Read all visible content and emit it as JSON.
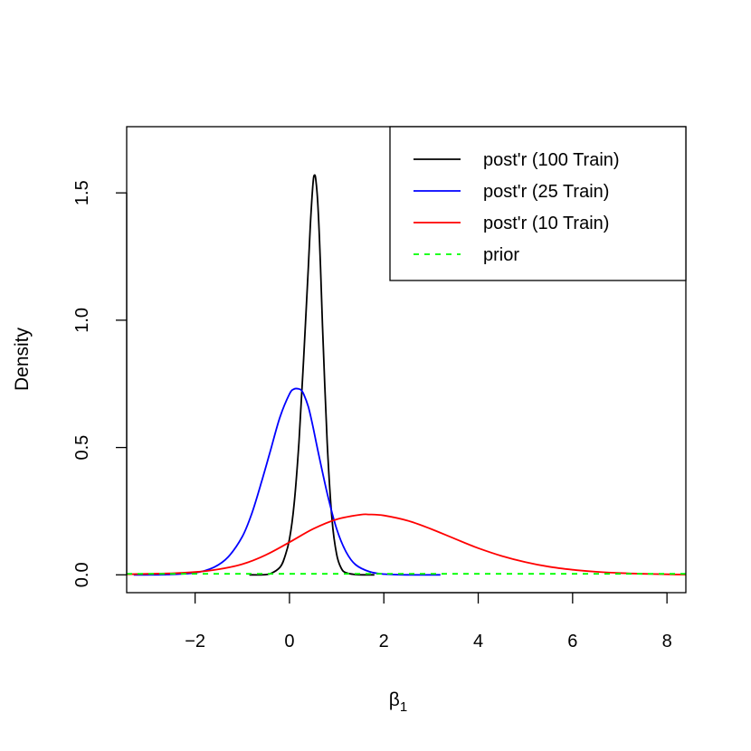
{
  "chart_data": {
    "type": "line",
    "title": "",
    "xlabel": "β",
    "xlabel_subscript": "1",
    "ylabel": "Density",
    "xlim": [
      -3.45,
      8.4
    ],
    "ylim": [
      -0.07,
      1.76
    ],
    "x_ticks": [
      -2,
      0,
      2,
      4,
      6,
      8
    ],
    "x_tick_labels": [
      "−2",
      "0",
      "2",
      "4",
      "6",
      "8"
    ],
    "y_ticks": [
      0.0,
      0.5,
      1.0,
      1.5
    ],
    "y_tick_labels": [
      "0.0",
      "0.5",
      "1.0",
      "1.5"
    ],
    "grid": false,
    "legend_position": "top-right",
    "series": [
      {
        "name": "post'r (100 Train)",
        "color": "#000000",
        "dash": "solid",
        "x": [
          -0.85,
          -0.6,
          -0.4,
          -0.2,
          -0.1,
          0.0,
          0.1,
          0.2,
          0.3,
          0.4,
          0.45,
          0.5,
          0.53,
          0.56,
          0.6,
          0.65,
          0.7,
          0.8,
          0.9,
          1.0,
          1.1,
          1.2,
          1.4,
          1.6,
          1.8
        ],
        "y": [
          0.0,
          0.0,
          0.005,
          0.03,
          0.07,
          0.14,
          0.28,
          0.52,
          0.85,
          1.21,
          1.4,
          1.54,
          1.57,
          1.55,
          1.46,
          1.25,
          0.98,
          0.52,
          0.22,
          0.08,
          0.025,
          0.008,
          0.001,
          0.0,
          0.0
        ]
      },
      {
        "name": "post'r (25 Train)",
        "color": "#0000ff",
        "dash": "solid",
        "x": [
          -3.3,
          -2.6,
          -2.0,
          -1.6,
          -1.3,
          -1.0,
          -0.8,
          -0.6,
          -0.4,
          -0.2,
          0.0,
          0.1,
          0.2,
          0.25,
          0.3,
          0.4,
          0.5,
          0.6,
          0.8,
          1.0,
          1.2,
          1.4,
          1.7,
          2.0,
          2.5,
          3.2
        ],
        "y": [
          0.0,
          0.001,
          0.008,
          0.03,
          0.07,
          0.15,
          0.24,
          0.36,
          0.49,
          0.62,
          0.71,
          0.73,
          0.73,
          0.725,
          0.71,
          0.66,
          0.58,
          0.49,
          0.32,
          0.18,
          0.09,
          0.04,
          0.012,
          0.003,
          0.0,
          0.0
        ]
      },
      {
        "name": "post'r (10 Train)",
        "color": "#ff0000",
        "dash": "solid",
        "x": [
          -3.45,
          -2.5,
          -2.0,
          -1.5,
          -1.0,
          -0.5,
          0.0,
          0.5,
          1.0,
          1.5,
          1.7,
          2.0,
          2.5,
          3.0,
          3.5,
          4.0,
          4.5,
          5.0,
          5.5,
          6.0,
          6.5,
          7.0,
          7.5,
          8.0,
          8.4
        ],
        "y": [
          0.002,
          0.006,
          0.011,
          0.022,
          0.042,
          0.078,
          0.128,
          0.18,
          0.218,
          0.236,
          0.237,
          0.233,
          0.213,
          0.18,
          0.142,
          0.105,
          0.074,
          0.05,
          0.032,
          0.02,
          0.012,
          0.007,
          0.004,
          0.002,
          0.001
        ]
      },
      {
        "name": "prior",
        "color": "#00ff00",
        "dash": "dashed",
        "x": [
          -3.45,
          8.4
        ],
        "y": [
          0.004,
          0.004
        ]
      }
    ]
  }
}
